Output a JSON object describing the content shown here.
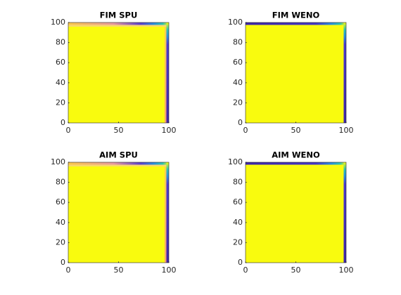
{
  "chart_data": [
    {
      "type": "image",
      "title": "FIM SPU",
      "color": "#f9fb0e",
      "xlim": [
        0,
        100
      ],
      "ylim": [
        0,
        100
      ],
      "xticks": [
        0,
        50,
        100
      ],
      "yticks": [
        0,
        20,
        40,
        60,
        80,
        100
      ]
    },
    {
      "type": "image",
      "title": "FIM WENO",
      "color": "#f9fb0e",
      "xlim": [
        0,
        100
      ],
      "ylim": [
        0,
        100
      ],
      "xticks": [
        0,
        50,
        100
      ],
      "yticks": [
        0,
        20,
        40,
        60,
        80,
        100
      ]
    },
    {
      "type": "image",
      "title": "AIM SPU",
      "color": "#f9fb0e",
      "xlim": [
        0,
        100
      ],
      "ylim": [
        0,
        100
      ],
      "xticks": [
        0,
        50,
        100
      ],
      "yticks": [
        0,
        20,
        40,
        60,
        80,
        100
      ]
    },
    {
      "type": "image",
      "title": "AIM WENO",
      "color": "#f9fb0e",
      "xlim": [
        0,
        100
      ],
      "ylim": [
        0,
        100
      ],
      "xticks": [
        0,
        50,
        100
      ],
      "yticks": [
        0,
        20,
        40,
        60,
        80,
        100
      ]
    }
  ]
}
